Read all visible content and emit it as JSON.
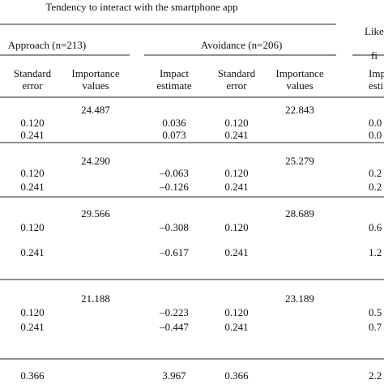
{
  "title": "Tendency to interact with the smartphone app",
  "groups": [
    [
      "Approach (n=213)"
    ],
    [
      "Avoidance (n=206)"
    ],
    [
      "Like",
      "fi"
    ]
  ],
  "columns": [
    [
      "Standard",
      "error"
    ],
    [
      "Importance",
      "values"
    ],
    [
      "Impact",
      "estimate"
    ],
    [
      "Standard",
      "error"
    ],
    [
      "Importance",
      "values"
    ],
    [
      "Imp",
      "esti"
    ]
  ],
  "blocks": [
    [
      [
        null,
        "24.487",
        null,
        null,
        "22.843",
        null
      ],
      [
        "0.120",
        null,
        "0.036",
        "0.120",
        null,
        "0.0"
      ],
      [
        "0.241",
        null,
        "0.073",
        "0.241",
        null,
        "0.0"
      ]
    ],
    [
      [
        null,
        "24.290",
        null,
        null,
        "25.279",
        null
      ],
      [
        "0.120",
        null,
        "–0.063",
        "0.120",
        null,
        "0.2"
      ],
      [
        "0.241",
        null,
        "–0.126",
        "0.241",
        null,
        "0.2"
      ]
    ],
    [
      [
        null,
        "29.566",
        null,
        null,
        "28.689",
        null
      ],
      [
        "0.120",
        null,
        "–0.308",
        "0.120",
        null,
        "0.6"
      ],
      [
        "0.241",
        null,
        "–0.617",
        "0.241",
        null,
        "1.2"
      ]
    ],
    [
      [
        null,
        "21.188",
        null,
        null,
        "23.189",
        null
      ],
      [
        "0.120",
        null,
        "–0.223",
        "0.120",
        null,
        "0.5"
      ],
      [
        "0.241",
        null,
        "–0.447",
        "0.241",
        null,
        "0.7"
      ]
    ],
    [
      [
        "0.366",
        null,
        "3.967",
        "0.366",
        null,
        "2.2"
      ]
    ]
  ]
}
